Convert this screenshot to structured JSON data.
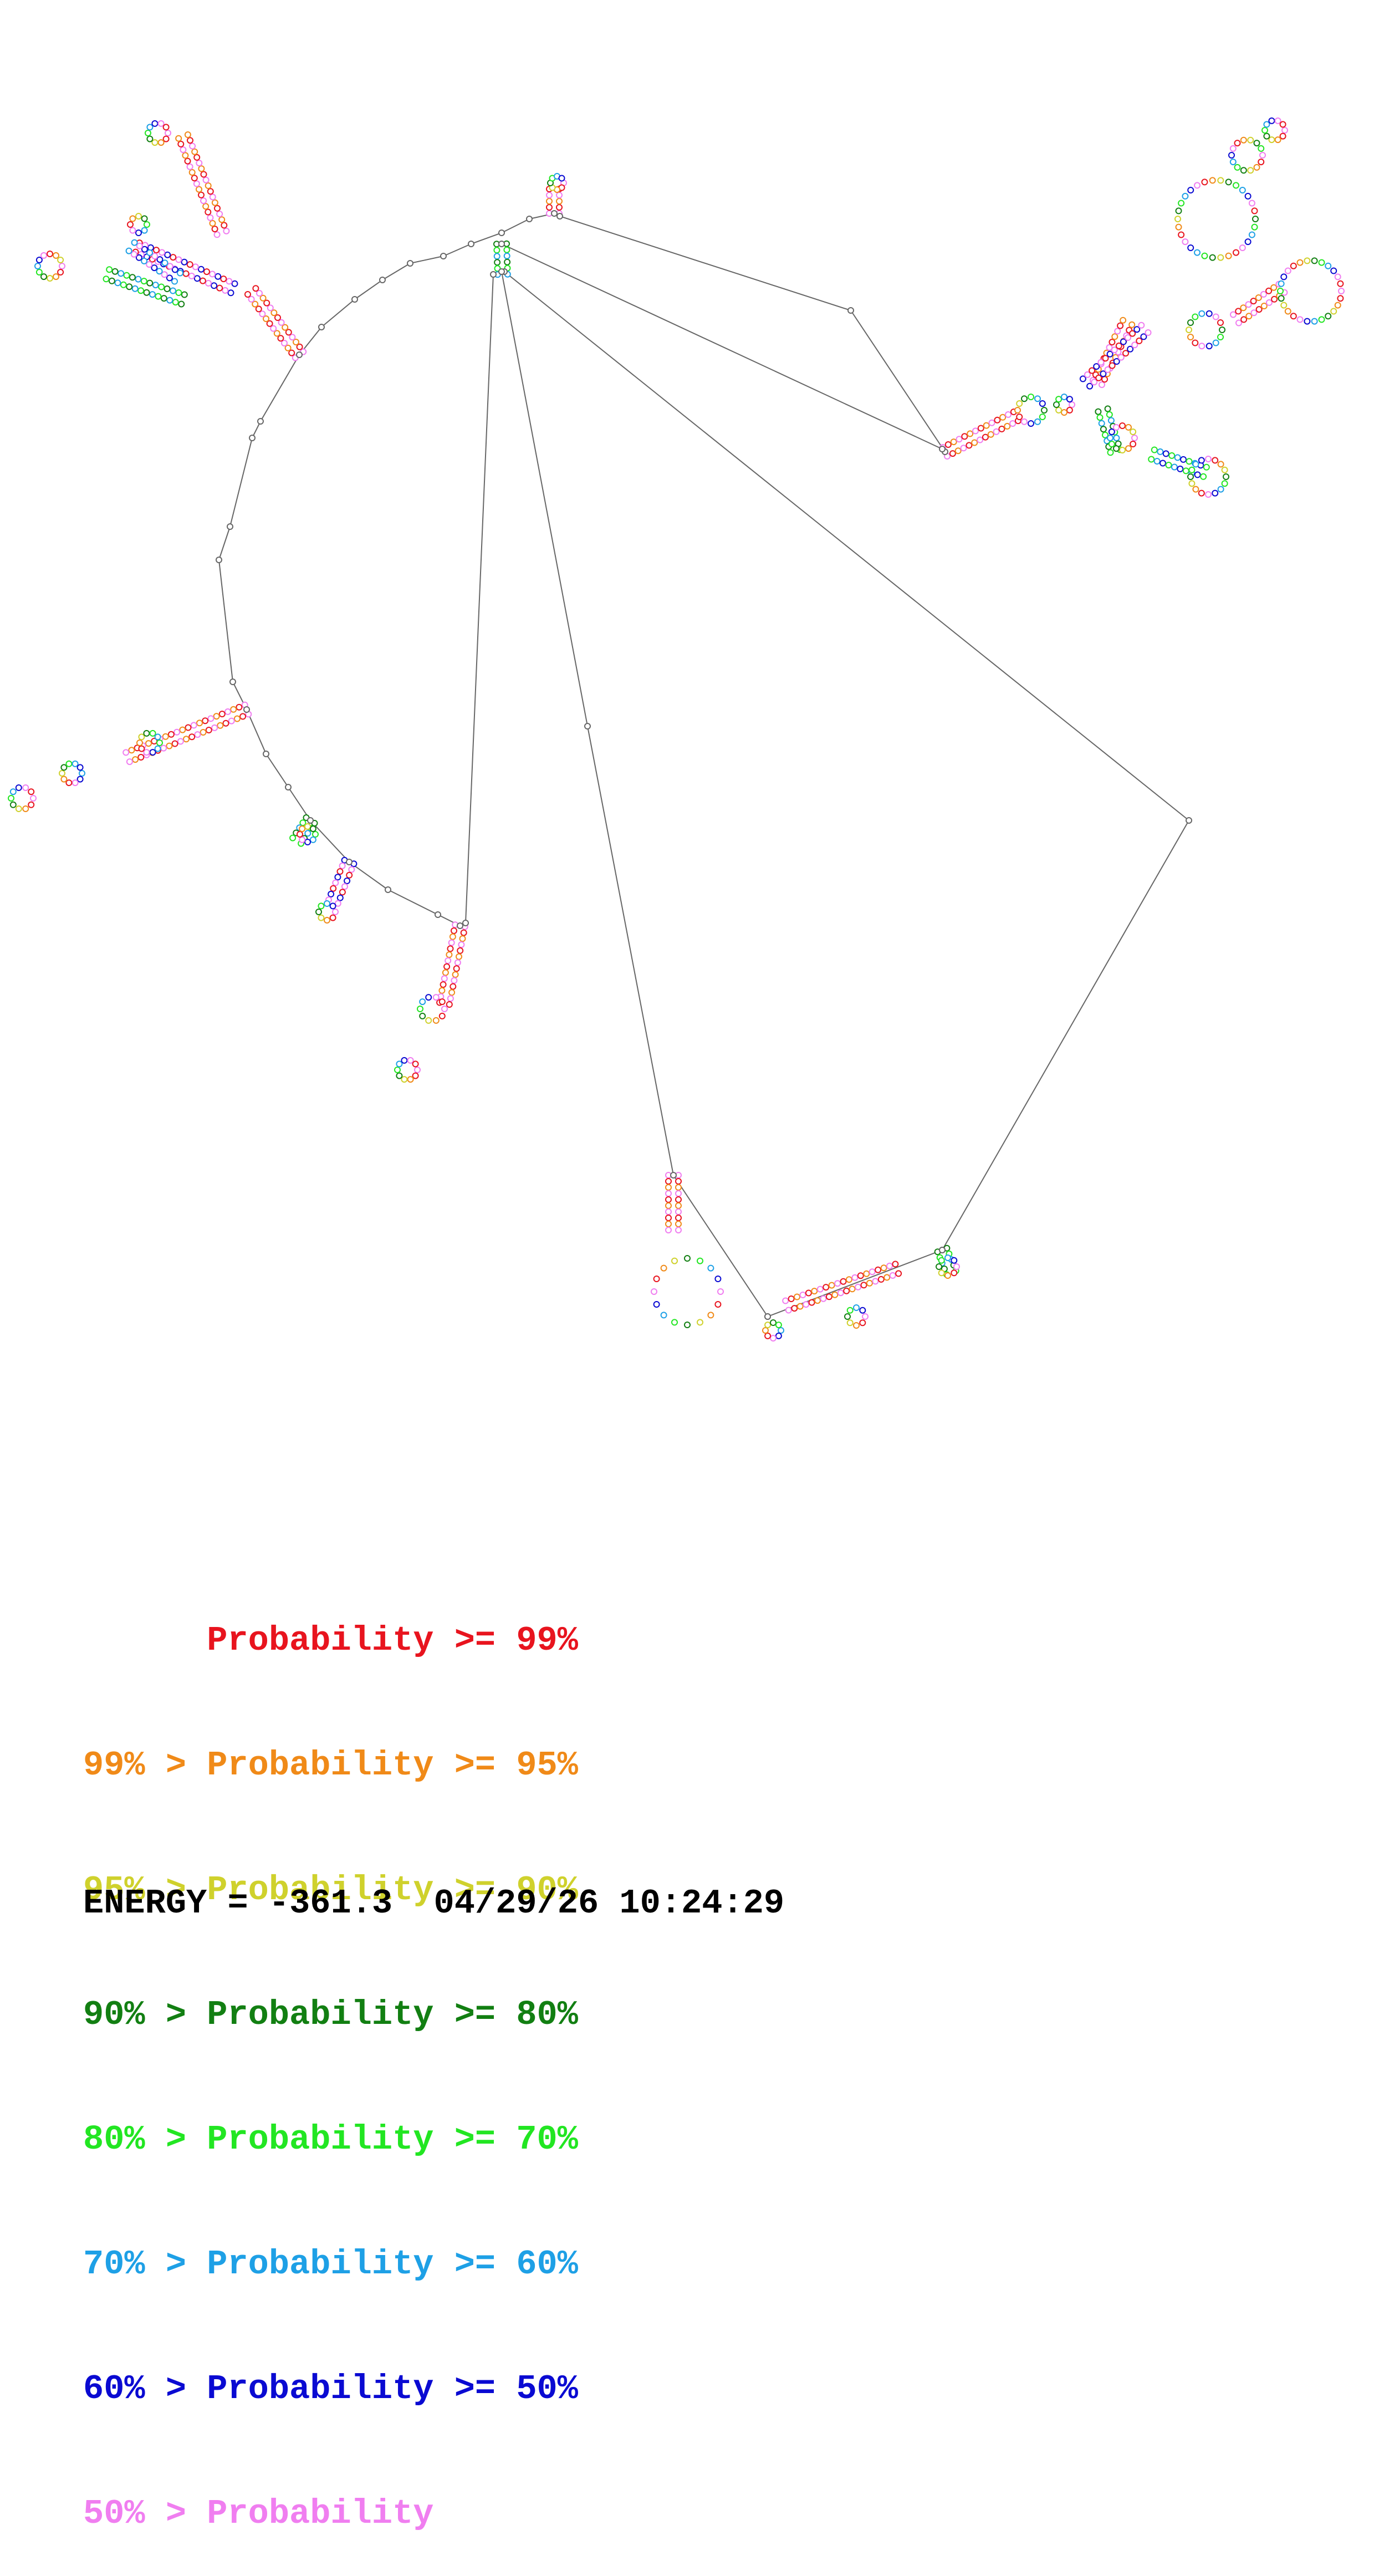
{
  "legend": [
    {
      "text": "      Probability >= 99%",
      "color": "#e8141e"
    },
    {
      "text": "99% > Probability >= 95%",
      "color": "#f08a18"
    },
    {
      "text": "95% > Probability >= 90%",
      "color": "#cfd12c"
    },
    {
      "text": "90% > Probability >= 80%",
      "color": "#127f12"
    },
    {
      "text": "80% > Probability >= 70%",
      "color": "#22e622"
    },
    {
      "text": "70% > Probability >= 60%",
      "color": "#1ea0e6"
    },
    {
      "text": "60% > Probability >= 50%",
      "color": "#0a0ad2"
    },
    {
      "text": "50% > Probability",
      "color": "#f07ef0"
    }
  ],
  "energy": {
    "label": "ENERGY",
    "value": "-361.3",
    "date": "04/29/26",
    "time": "10:24:29"
  }
}
